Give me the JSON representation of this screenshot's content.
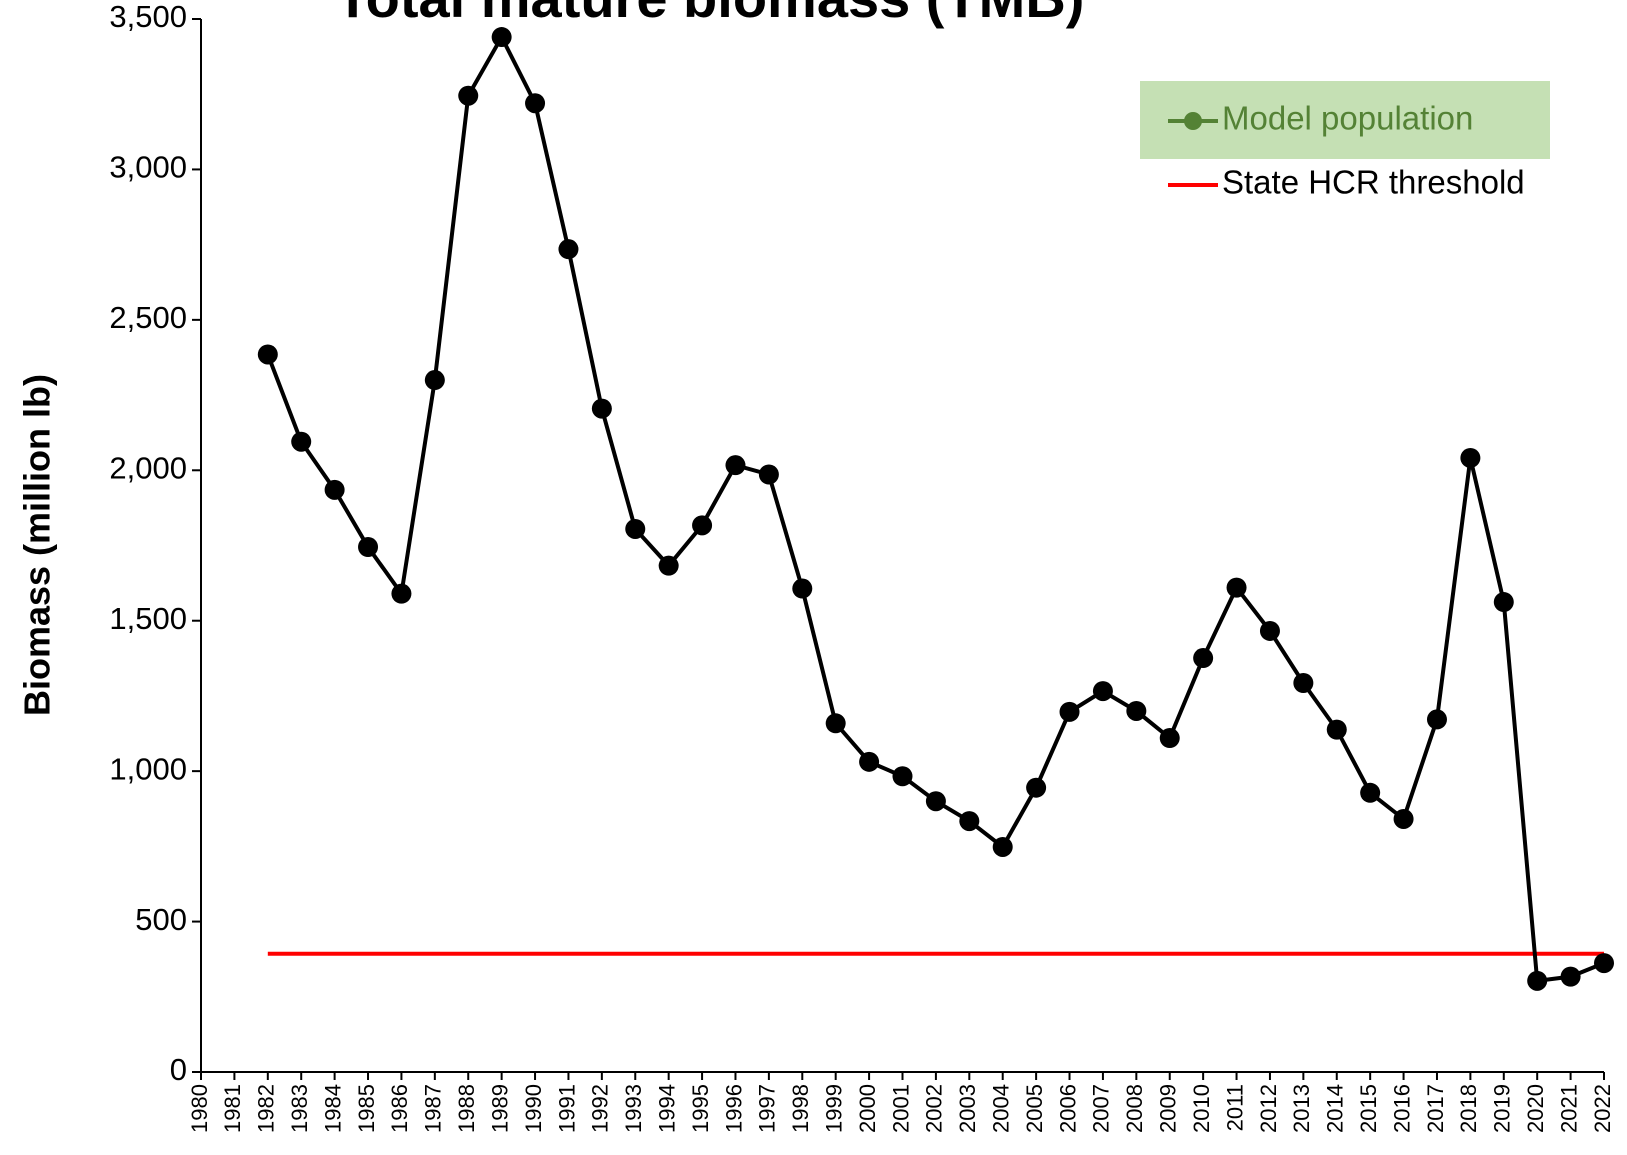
{
  "chart_data": {
    "type": "line",
    "title": "Total mature biomass (TMB)",
    "y_label": "Biomass (million lb)",
    "categories": [
      "1980",
      "1981",
      "1982",
      "1983",
      "1984",
      "1985",
      "1986",
      "1987",
      "1988",
      "1989",
      "1990",
      "1991",
      "1992",
      "1993",
      "1994",
      "1995",
      "1996",
      "1997",
      "1998",
      "1999",
      "2000",
      "2001",
      "2002",
      "2003",
      "2004",
      "2005",
      "2006",
      "2007",
      "2008",
      "2009",
      "2010",
      "2011",
      "2012",
      "2013",
      "2014",
      "2015",
      "2016",
      "2017",
      "2018",
      "2019",
      "2020",
      "2021",
      "2022"
    ],
    "series": [
      {
        "name": "Model population",
        "color": "#000000",
        "marker": true,
        "values": [
          null,
          null,
          2385,
          2095,
          1935,
          1745,
          1590,
          2300,
          3245,
          3440,
          3220,
          2735,
          2205,
          1805,
          1683,
          1817,
          2017,
          1986,
          1607,
          1159,
          1031,
          983,
          900,
          834,
          748,
          945,
          1197,
          1266,
          1200,
          1110,
          1376,
          1610,
          1466,
          1293,
          1138,
          928,
          841,
          1172,
          2041,
          1562,
          303,
          317,
          362
        ]
      },
      {
        "name": "State HCR threshold",
        "color": "#ff0000",
        "marker": false,
        "values": [
          null,
          null,
          393,
          393,
          393,
          393,
          393,
          393,
          393,
          393,
          393,
          393,
          393,
          393,
          393,
          393,
          393,
          393,
          393,
          393,
          393,
          393,
          393,
          393,
          393,
          393,
          393,
          393,
          393,
          393,
          393,
          393,
          393,
          393,
          393,
          393,
          393,
          393,
          393,
          393,
          393,
          393,
          393
        ]
      }
    ],
    "ylim": [
      0,
      3500
    ],
    "yticks": [
      0,
      500,
      {
        "value": 1000,
        "label": "1,000"
      },
      {
        "value": 1500,
        "label": "1,500"
      },
      {
        "value": 2000,
        "label": "2,000"
      },
      {
        "value": 2500,
        "label": "2,500"
      },
      {
        "value": 3000,
        "label": "3,000"
      },
      {
        "value": 3500,
        "label": "3,500"
      }
    ],
    "grid": false,
    "legend": "upper right"
  }
}
